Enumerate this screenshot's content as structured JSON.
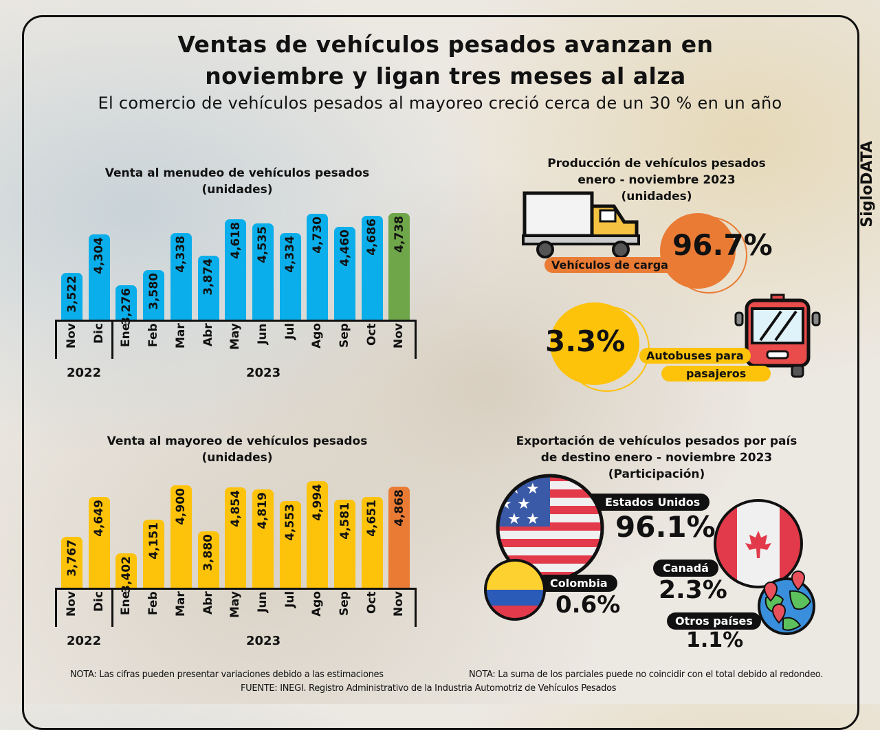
{
  "header": {
    "title_line1": "Ventas de vehículos pesados avanzan en",
    "title_line2": "noviembre y ligan tres meses al alza",
    "subtitle": "El comercio de vehículos pesados al mayoreo creció cerca de un 30 % en un año",
    "brand": "SigloDATA"
  },
  "chart_data": [
    {
      "type": "bar",
      "title": "Venta al menudeo de vehículos pesados",
      "unit": "(unidades)",
      "categories": [
        "Nov",
        "Dic",
        "Ene",
        "Feb",
        "Mar",
        "Abr",
        "May",
        "Jun",
        "Jul",
        "Ago",
        "Sep",
        "Oct",
        "Nov"
      ],
      "values": [
        3522,
        4304,
        3276,
        3580,
        4338,
        3874,
        4618,
        4535,
        4334,
        4730,
        4460,
        4686,
        4738
      ],
      "labels": [
        "3,522",
        "4,304",
        "3,276",
        "3,580",
        "4,338",
        "3,874",
        "4,618",
        "4,535",
        "4,334",
        "4,730",
        "4,460",
        "4,686",
        "4,738"
      ],
      "years": [
        "2022",
        "2023"
      ],
      "color": "#0aaeea",
      "highlight_color": "#6fa64a"
    },
    {
      "type": "bar",
      "title": "Venta al mayoreo de vehículos pesados",
      "unit": "(unidades)",
      "categories": [
        "Nov",
        "Dic",
        "Ene",
        "Feb",
        "Mar",
        "Abr",
        "May",
        "Jun",
        "Jul",
        "Ago",
        "Sep",
        "Oct",
        "Nov"
      ],
      "values": [
        3767,
        4649,
        3402,
        4151,
        4900,
        3880,
        4854,
        4819,
        4553,
        4994,
        4581,
        4651,
        4868
      ],
      "labels": [
        "3,767",
        "4,649",
        "3,402",
        "4,151",
        "4,900",
        "3,880",
        "4,854",
        "4,819",
        "4,553",
        "4,994",
        "4,581",
        "4,651",
        "4,868"
      ],
      "years": [
        "2022",
        "2023"
      ],
      "color": "#fdc20a",
      "highlight_color": "#ea7b34"
    }
  ],
  "production": {
    "title1": "Producción de vehículos pesados",
    "title2": "enero - noviembre 2023",
    "unit": "(unidades)",
    "cargo_label": "Vehículos de carga",
    "cargo_pct": "96.7%",
    "bus_label1": "Autobuses para",
    "bus_label2": "pasajeros",
    "bus_pct": "3.3%"
  },
  "exports": {
    "title1": "Exportación de vehículos pesados por país",
    "title2": "de destino enero - noviembre 2023",
    "unit": "(Participación)",
    "us_label": "Estados Unidos",
    "us_pct": "96.1%",
    "col_label": "Colombia",
    "col_pct": "0.6%",
    "can_label": "Canadá",
    "can_pct": "2.3%",
    "other_label": "Otros países",
    "other_pct": "1.1%"
  },
  "notes": {
    "left": "NOTA: Las cifras pueden presentar variaciones debido a las estimaciones",
    "right": "NOTA: La suma de los parciales puede no coincidir con el total debido al redondeo.",
    "source": "FUENTE: INEGI. Registro Administrativo de la Industria Automotriz de Vehículos Pesados"
  }
}
